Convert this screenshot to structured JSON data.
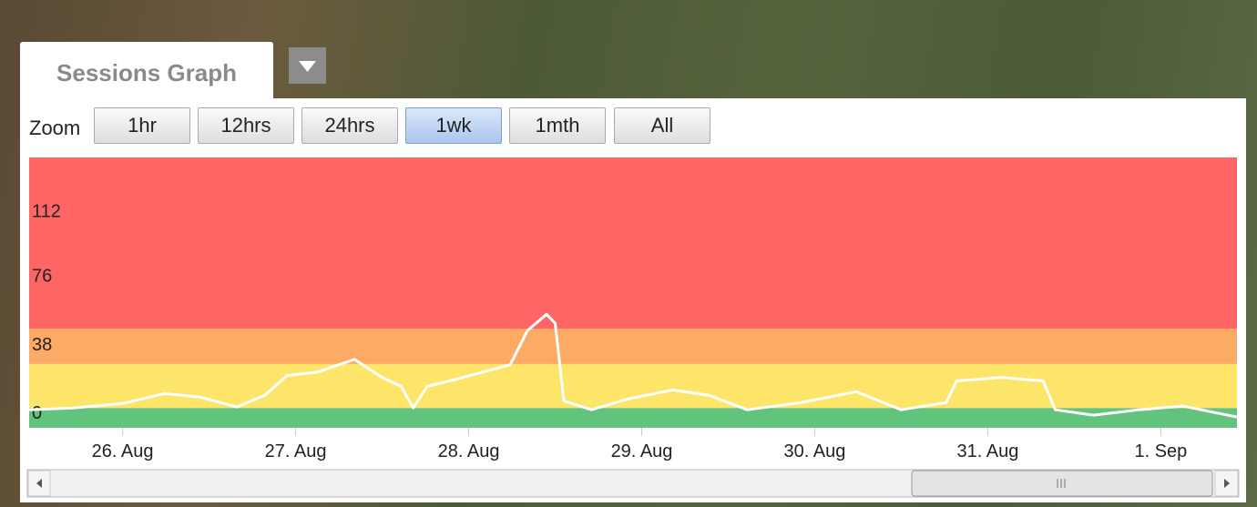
{
  "tab": {
    "title": "Sessions Graph"
  },
  "zoom": {
    "label": "Zoom",
    "buttons": [
      "1hr",
      "12hrs",
      "24hrs",
      "1wk",
      "1mth",
      "All"
    ],
    "selected": 3
  },
  "chart_data": {
    "type": "line",
    "x": [
      -0.54,
      -0.29,
      0,
      0.24,
      0.45,
      0.66,
      0.82,
      0.95,
      1.13,
      1.34,
      1.5,
      1.61,
      1.68,
      1.76,
      1.97,
      2.24,
      2.34,
      2.45,
      2.5,
      2.55,
      2.71,
      2.92,
      3.18,
      3.39,
      3.61,
      3.92,
      4.24,
      4.5,
      4.76,
      4.82,
      5.08,
      5.32,
      5.39,
      5.61,
      5.87,
      6.13,
      6.44
    ],
    "values": [
      4,
      5,
      7.5,
      13,
      11,
      5.5,
      12,
      23,
      25,
      32,
      22,
      17,
      5,
      17,
      22,
      29,
      48,
      57,
      52,
      9,
      4,
      10,
      15,
      12,
      4,
      8,
      14,
      4,
      8,
      20,
      22,
      20,
      4,
      1,
      4,
      6,
      0
    ],
    "color": "#ffffff",
    "xlim": [
      -0.54,
      6.44
    ],
    "xticks": [
      {
        "value": 0,
        "label": "26. Aug"
      },
      {
        "value": 1,
        "label": "27. Aug"
      },
      {
        "value": 2,
        "label": "28. Aug"
      },
      {
        "value": 3,
        "label": "29. Aug"
      },
      {
        "value": 4,
        "label": "30. Aug"
      },
      {
        "value": 5,
        "label": "31. Aug"
      },
      {
        "value": 6,
        "label": "1. Sep"
      }
    ],
    "ylim": [
      -6,
      144
    ],
    "yticks": [
      0,
      38,
      76,
      112
    ],
    "bands": [
      {
        "from": -6,
        "to": 5,
        "color": "#62c47c"
      },
      {
        "from": 5,
        "to": 29.4,
        "color": "#fde56a"
      },
      {
        "from": 29.4,
        "to": 49,
        "color": "#fdab64"
      },
      {
        "from": 49,
        "to": 144,
        "color": "#fe6565"
      }
    ]
  }
}
